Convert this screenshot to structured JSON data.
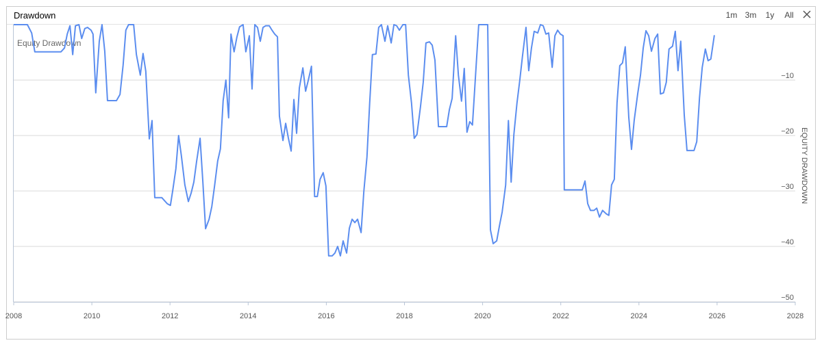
{
  "header": {
    "title": "Drawdown",
    "buttons": [
      "1m",
      "3m",
      "1y",
      "All"
    ]
  },
  "chart_data": {
    "type": "line",
    "y_label": "EQUITY DRAWDOWN",
    "xlim": [
      2008,
      2028
    ],
    "xticks": [
      2008,
      2010,
      2012,
      2014,
      2016,
      2018,
      2020,
      2022,
      2024,
      2026,
      2028
    ],
    "ylim": [
      -50,
      0
    ],
    "yticks": [
      {
        "value": -10,
        "label": "−10"
      },
      {
        "value": -20,
        "label": "−20"
      },
      {
        "value": -30,
        "label": "−30"
      },
      {
        "value": -40,
        "label": "−40"
      },
      {
        "value": -50,
        "label": "−50"
      }
    ],
    "grid": true,
    "x": [
      2008.0,
      2008.35,
      2008.46,
      2008.54,
      2009.21,
      2009.3,
      2009.37,
      2009.44,
      2009.51,
      2009.58,
      2009.67,
      2009.74,
      2009.82,
      2009.89,
      2009.98,
      2010.03,
      2010.1,
      2010.19,
      2010.26,
      2010.33,
      2010.4,
      2010.63,
      2010.72,
      2010.8,
      2010.87,
      2010.94,
      2011.07,
      2011.14,
      2011.24,
      2011.31,
      2011.38,
      2011.47,
      2011.54,
      2011.61,
      2011.79,
      2011.93,
      2012.01,
      2012.07,
      2012.15,
      2012.22,
      2012.29,
      2012.38,
      2012.47,
      2012.54,
      2012.61,
      2012.68,
      2012.77,
      2012.84,
      2012.91,
      2013.0,
      2013.07,
      2013.14,
      2013.22,
      2013.29,
      2013.36,
      2013.43,
      2013.5,
      2013.56,
      2013.64,
      2013.71,
      2013.78,
      2013.87,
      2013.94,
      2014.03,
      2014.1,
      2014.17,
      2014.24,
      2014.31,
      2014.38,
      2014.45,
      2014.54,
      2014.61,
      2014.68,
      2014.75,
      2014.8,
      2014.89,
      2014.96,
      2015.03,
      2015.1,
      2015.17,
      2015.24,
      2015.31,
      2015.4,
      2015.47,
      2015.54,
      2015.62,
      2015.7,
      2015.77,
      2015.84,
      2015.92,
      2015.99,
      2016.06,
      2016.15,
      2016.22,
      2016.29,
      2016.36,
      2016.43,
      2016.52,
      2016.59,
      2016.66,
      2016.73,
      2016.8,
      2016.89,
      2016.96,
      2017.04,
      2017.11,
      2017.18,
      2017.27,
      2017.34,
      2017.41,
      2017.5,
      2017.57,
      2017.66,
      2017.73,
      2017.8,
      2017.87,
      2017.96,
      2018.03,
      2018.1,
      2018.18,
      2018.25,
      2018.32,
      2018.41,
      2018.48,
      2018.55,
      2018.64,
      2018.71,
      2018.78,
      2018.87,
      2019.08,
      2019.15,
      2019.22,
      2019.31,
      2019.38,
      2019.46,
      2019.53,
      2019.6,
      2019.67,
      2019.74,
      2019.83,
      2019.9,
      2020.13,
      2020.2,
      2020.27,
      2020.36,
      2020.43,
      2020.5,
      2020.59,
      2020.66,
      2020.73,
      2020.8,
      2020.88,
      2020.95,
      2021.02,
      2021.11,
      2021.18,
      2021.25,
      2021.32,
      2021.41,
      2021.48,
      2021.55,
      2021.62,
      2021.69,
      2021.78,
      2021.85,
      2021.92,
      2021.99,
      2022.06,
      2022.09,
      2022.55,
      2022.62,
      2022.69,
      2022.76,
      2022.85,
      2022.92,
      2022.99,
      2023.07,
      2023.16,
      2023.23,
      2023.3,
      2023.37,
      2023.44,
      2023.51,
      2023.58,
      2023.65,
      2023.74,
      2023.81,
      2023.88,
      2023.97,
      2024.04,
      2024.11,
      2024.18,
      2024.25,
      2024.32,
      2024.41,
      2024.48,
      2024.55,
      2024.63,
      2024.7,
      2024.77,
      2024.86,
      2024.93,
      2025.0,
      2025.07,
      2025.16,
      2025.23,
      2025.41,
      2025.48,
      2025.55,
      2025.62,
      2025.7,
      2025.77,
      2025.84,
      2025.93
    ],
    "series": [
      {
        "name": "Equity Drawdown",
        "color": "#5b8def",
        "values": [
          0,
          0,
          -1.5,
          -4.9,
          -4.9,
          -4.2,
          -1.7,
          -0.2,
          -5.4,
          -0.2,
          0,
          -2.5,
          -0.7,
          -0.5,
          -1.0,
          -1.7,
          -12.3,
          -3.0,
          0,
          -4.8,
          -13.7,
          -13.7,
          -12.6,
          -7.3,
          -1.0,
          0,
          0,
          -5.4,
          -9.1,
          -5.2,
          -8.4,
          -20.6,
          -17.3,
          -31.2,
          -31.2,
          -32.3,
          -32.6,
          -29.9,
          -26.0,
          -20.0,
          -23.6,
          -28.9,
          -31.9,
          -30.4,
          -28.4,
          -24.7,
          -20.5,
          -28.3,
          -36.8,
          -35.1,
          -32.8,
          -29.1,
          -24.6,
          -22.4,
          -13.7,
          -10.0,
          -16.8,
          -1.7,
          -4.9,
          -2.3,
          -0.4,
          0,
          -4.9,
          -2.0,
          -11.6,
          0,
          -0.5,
          -3.0,
          -0.5,
          -0.2,
          -0.2,
          -1.0,
          -1.7,
          -2.2,
          -16.5,
          -20.9,
          -17.8,
          -20.5,
          -22.8,
          -13.5,
          -19.6,
          -11.4,
          -7.8,
          -12.0,
          -10.0,
          -7.5,
          -31.0,
          -31.0,
          -27.9,
          -26.7,
          -29.1,
          -41.7,
          -41.7,
          -41.2,
          -40.0,
          -41.7,
          -39.0,
          -41.2,
          -36.7,
          -35.1,
          -35.7,
          -35.1,
          -37.5,
          -30.1,
          -23.9,
          -14.1,
          -5.4,
          -5.3,
          -0.5,
          0,
          -3.0,
          -0.2,
          -3.3,
          0,
          -0.2,
          -1.0,
          0,
          0,
          -9.1,
          -14.1,
          -20.5,
          -19.8,
          -14.8,
          -10.4,
          -3.3,
          -3.1,
          -3.7,
          -6.4,
          -18.4,
          -18.4,
          -15.3,
          -13.3,
          -2.0,
          -9.1,
          -13.8,
          -7.9,
          -19.4,
          -17.5,
          -18.1,
          -7.9,
          0,
          0,
          -37.0,
          -39.5,
          -39.0,
          -36.3,
          -33.8,
          -28.9,
          -17.3,
          -28.4,
          -19.8,
          -14.1,
          -10.1,
          -5.7,
          -0.5,
          -8.3,
          -4.2,
          -1.2,
          -1.5,
          0,
          -0.2,
          -1.7,
          -1.5,
          -7.7,
          -2.0,
          -1.0,
          -1.7,
          -2.0,
          -29.8,
          -29.8,
          -28.2,
          -32.3,
          -33.5,
          -33.5,
          -33.1,
          -34.7,
          -33.5,
          -34.1,
          -34.4,
          -28.9,
          -27.9,
          -14.1,
          -7.4,
          -6.9,
          -4.0,
          -16.7,
          -22.5,
          -17.2,
          -12.4,
          -9.1,
          -4.2,
          -1.1,
          -2.0,
          -4.8,
          -2.5,
          -1.7,
          -12.5,
          -12.3,
          -10.4,
          -4.4,
          -3.9,
          -1.2,
          -8.3,
          -3.0,
          -16.3,
          -22.7,
          -22.7,
          -21.1,
          -13.2,
          -7.7,
          -4.4,
          -6.5,
          -6.2,
          -1.9
        ]
      }
    ]
  }
}
